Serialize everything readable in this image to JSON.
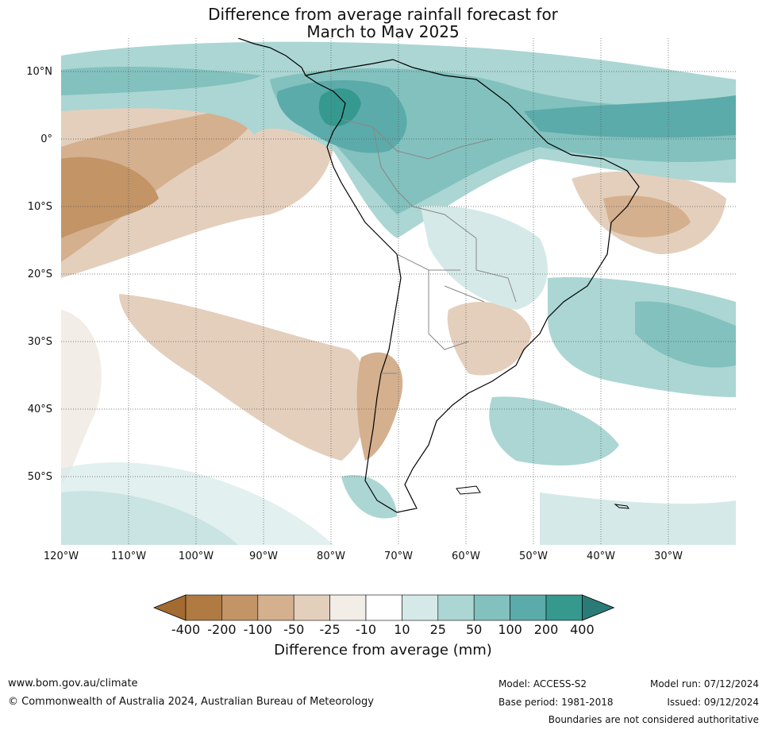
{
  "title_line1": "Difference from average rainfall forecast for",
  "title_line2": "March to May 2025",
  "map": {
    "lat_labels": [
      "10°N",
      "0°",
      "10°S",
      "20°S",
      "30°S",
      "40°S",
      "50°S"
    ],
    "lon_labels": [
      "120°W",
      "110°W",
      "100°W",
      "90°W",
      "80°W",
      "70°W",
      "60°W",
      "50°W",
      "40°W",
      "30°W"
    ]
  },
  "colorbar": {
    "title": "Difference from average (mm)",
    "tick_labels": [
      "-400",
      "-200",
      "-100",
      "-50",
      "-25",
      "-10",
      "10",
      "25",
      "50",
      "100",
      "200",
      "400"
    ],
    "colors": {
      "extend_low": "#a36a32",
      "bins": [
        "#b07a43",
        "#c29466",
        "#d4b08e",
        "#e4cfbd",
        "#f2ede6",
        "#ffffff",
        "#d5eae8",
        "#abd6d3",
        "#82c1be",
        "#5babaa",
        "#35998f"
      ],
      "extend_high": "#2a7a78"
    }
  },
  "footer": {
    "url": "www.bom.gov.au/climate",
    "copyright": "© Commonwealth of Australia 2024, Australian Bureau of Meteorology",
    "model": "Model: ACCESS-S2",
    "base_period": "Base period: 1981-2018",
    "model_run": "Model run: 07/12/2024",
    "issued": "Issued: 09/12/2024",
    "disclaimer": "Boundaries are not considered authoritative"
  }
}
